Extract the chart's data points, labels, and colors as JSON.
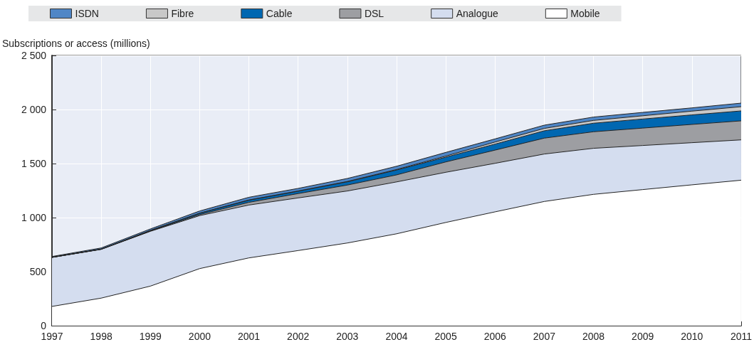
{
  "chart_data": {
    "type": "area",
    "stacked": true,
    "ylabel": "Subscriptions or access (millions)",
    "categories": [
      "1997",
      "1998",
      "1999",
      "2000",
      "2001",
      "2002",
      "2003",
      "2004",
      "2005",
      "2006",
      "2007",
      "2008",
      "2009",
      "2010",
      "2011"
    ],
    "series": [
      {
        "name": "Mobile",
        "color": "#ffffff",
        "values": [
          178,
          255,
          366,
          528,
          627,
          695,
          765,
          850,
          955,
          1053,
          1149,
          1215,
          1259,
          1303,
          1346
        ]
      },
      {
        "name": "Analogue",
        "color": "#d4ddef",
        "values": [
          454,
          451,
          507,
          490,
          489,
          487,
          481,
          480,
          464,
          449,
          439,
          426,
          408,
          390,
          373
        ]
      },
      {
        "name": "DSL",
        "color": "#9d9ea2",
        "values": [
          0,
          1,
          3,
          10,
          25,
          40,
          55,
          65,
          96,
          122,
          147,
          153,
          161,
          169,
          176
        ]
      },
      {
        "name": "Cable",
        "color": "#0067b1",
        "values": [
          0,
          1,
          5,
          12,
          20,
          22,
          30,
          45,
          44,
          56,
          68,
          79,
          84,
          88,
          92
        ]
      },
      {
        "name": "Fibre",
        "color": "#c8c8c8",
        "values": [
          0,
          0,
          0,
          1,
          2,
          2,
          3,
          5,
          10,
          19,
          22,
          26,
          30,
          35,
          39
        ]
      },
      {
        "name": "ISDN",
        "color": "#4f86c6",
        "values": [
          8,
          11,
          14,
          20,
          25,
          24,
          28,
          30,
          34,
          29,
          30,
          31,
          31,
          30,
          33
        ]
      }
    ],
    "ylim": [
      0,
      2500
    ],
    "yticks": [
      0,
      500,
      {
        "value": 1000,
        "label": "1 000"
      },
      {
        "value": 1500,
        "label": "1 500"
      },
      {
        "value": 2000,
        "label": "2 000"
      },
      {
        "value": 2500,
        "label": "2 500"
      }
    ],
    "grid": true,
    "legend": "top",
    "line_style": "solid",
    "marker": "none"
  }
}
